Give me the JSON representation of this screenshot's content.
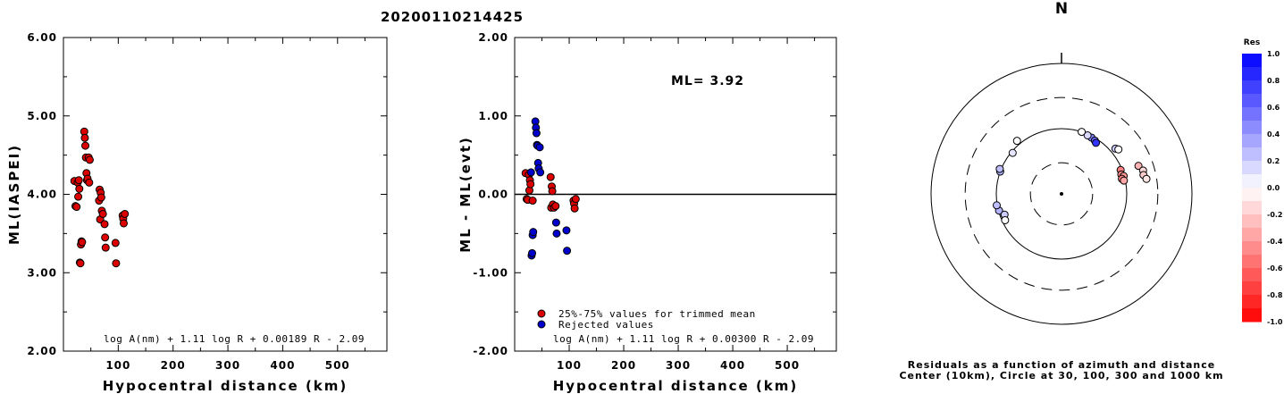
{
  "title": "20200110214425",
  "colors": {
    "red": "#dd0000",
    "blue": "#0000cc",
    "dark": "#000000"
  },
  "chart_data": [
    {
      "type": "scatter",
      "xlabel": "Hypocentral distance (km)",
      "ylabel": "ML(IASPEI)",
      "xlim": [
        0,
        590
      ],
      "ylim": [
        2,
        6
      ],
      "xticks": [
        "100",
        "200",
        "300",
        "400",
        "500"
      ],
      "yticks": [
        "2.00",
        "3.00",
        "4.00",
        "5.00",
        "6.00"
      ],
      "formula": "log A(nm) + 1.11 log R + 0.00189 R - 2.09",
      "points": [
        [
          20,
          4.17
        ],
        [
          22,
          3.85
        ],
        [
          24,
          3.84
        ],
        [
          26,
          4.15
        ],
        [
          27,
          3.97
        ],
        [
          28,
          4.18
        ],
        [
          29,
          4.07
        ],
        [
          30,
          3.13
        ],
        [
          31,
          3.12
        ],
        [
          32,
          3.36
        ],
        [
          33,
          3.4
        ],
        [
          34,
          3.39
        ],
        [
          38,
          4.8
        ],
        [
          39,
          4.72
        ],
        [
          40,
          4.62
        ],
        [
          41,
          4.47
        ],
        [
          42,
          4.27
        ],
        [
          43,
          4.18
        ],
        [
          44,
          4.2
        ],
        [
          46,
          4.47
        ],
        [
          47,
          4.15
        ],
        [
          48,
          4.44
        ],
        [
          65,
          3.92
        ],
        [
          66,
          4.06
        ],
        [
          67,
          3.68
        ],
        [
          68,
          4.02
        ],
        [
          69,
          3.96
        ],
        [
          70,
          3.79
        ],
        [
          72,
          3.75
        ],
        [
          75,
          3.62
        ],
        [
          76,
          3.45
        ],
        [
          77,
          3.32
        ],
        [
          95,
          3.38
        ],
        [
          96,
          3.12
        ],
        [
          108,
          3.73
        ],
        [
          109,
          3.69
        ],
        [
          110,
          3.63
        ],
        [
          112,
          3.75
        ]
      ]
    },
    {
      "type": "scatter",
      "xlabel": "Hypocentral distance (km)",
      "ylabel": "ML - ML(evt)",
      "xlim": [
        0,
        590
      ],
      "ylim": [
        -2,
        2
      ],
      "xticks": [
        "100",
        "200",
        "300",
        "400",
        "500"
      ],
      "yticks": [
        "-2.00",
        "-1.00",
        "0.00",
        "1.00",
        "2.00"
      ],
      "annotation": "ML= 3.92",
      "formula": "log A(nm) + 1.11 log R + 0.00300 R - 2.09",
      "legend": [
        "25%-75% values for trimmed mean",
        "Rejected values"
      ],
      "series": [
        {
          "points": [
            [
              20,
              0.27
            ],
            [
              22,
              -0.06
            ],
            [
              24,
              -0.07
            ],
            [
              26,
              0.25
            ],
            [
              27,
              0.05
            ],
            [
              28,
              0.18
            ],
            [
              29,
              0.13
            ],
            [
              33,
              -0.08
            ],
            [
              66,
              0.22
            ],
            [
              67,
              -0.17
            ],
            [
              68,
              0.1
            ],
            [
              69,
              0.04
            ],
            [
              70,
              -0.13
            ],
            [
              72,
              -0.17
            ],
            [
              75,
              -0.15
            ],
            [
              108,
              -0.08
            ],
            [
              109,
              -0.12
            ],
            [
              110,
              -0.18
            ],
            [
              112,
              -0.06
            ]
          ]
        },
        {
          "points": [
            [
              30,
              0.28
            ],
            [
              31,
              -0.78
            ],
            [
              32,
              -0.75
            ],
            [
              33,
              -0.52
            ],
            [
              34,
              -0.48
            ],
            [
              38,
              0.93
            ],
            [
              39,
              0.85
            ],
            [
              40,
              0.78
            ],
            [
              41,
              0.63
            ],
            [
              42,
              0.62
            ],
            [
              43,
              0.4
            ],
            [
              44,
              0.33
            ],
            [
              46,
              0.6
            ],
            [
              47,
              0.28
            ],
            [
              76,
              -0.36
            ],
            [
              77,
              -0.5
            ],
            [
              95,
              -0.46
            ],
            [
              96,
              -0.72
            ]
          ]
        }
      ]
    },
    {
      "type": "scatter",
      "north_label": "N",
      "caption_line1": "Residuals as a function of azimuth and distance",
      "caption_line2": "Center (10km), Circle at 30, 100, 300 and 1000 km",
      "colorbar_title": "Res",
      "colorbar_ticks": [
        "1.0",
        "0.8",
        "0.6",
        "0.4",
        "0.2",
        "0.0",
        "-0.2",
        "-0.4",
        "-0.6",
        "-0.8",
        "-1.0"
      ],
      "stations": [
        {
          "az": 28,
          "dist": 95,
          "res": 0.5
        },
        {
          "az": 32,
          "dist": 92,
          "res": 0.6
        },
        {
          "az": 34,
          "dist": 88,
          "res": 0.8
        },
        {
          "az": 24,
          "dist": 96,
          "res": 0.15
        },
        {
          "az": 18,
          "dist": 100,
          "res": 0.0
        },
        {
          "az": 50,
          "dist": 120,
          "res": 0.2
        },
        {
          "az": 52,
          "dist": 128,
          "res": 0.0
        },
        {
          "az": 68,
          "dist": 95,
          "res": -0.5
        },
        {
          "az": 72,
          "dist": 92,
          "res": -0.45
        },
        {
          "az": 74,
          "dist": 98,
          "res": -0.4
        },
        {
          "az": 76,
          "dist": 90,
          "res": -0.5
        },
        {
          "az": 78,
          "dist": 95,
          "res": -0.35
        },
        {
          "az": 70,
          "dist": 180,
          "res": -0.3
        },
        {
          "az": 74,
          "dist": 200,
          "res": -0.15
        },
        {
          "az": 77,
          "dist": 195,
          "res": -0.2
        },
        {
          "az": 80,
          "dist": 210,
          "res": -0.1
        },
        {
          "az": 310,
          "dist": 95,
          "res": 0.1
        },
        {
          "az": 320,
          "dist": 115,
          "res": 0.0
        },
        {
          "az": 290,
          "dist": 100,
          "res": 0.3
        },
        {
          "az": 292,
          "dist": 105,
          "res": 0.25
        },
        {
          "az": 255,
          "dist": 98,
          "res": 0.3
        },
        {
          "az": 260,
          "dist": 102,
          "res": 0.25
        },
        {
          "az": 250,
          "dist": 85,
          "res": 0.2
        },
        {
          "az": 245,
          "dist": 90,
          "res": 0.0
        }
      ]
    }
  ]
}
